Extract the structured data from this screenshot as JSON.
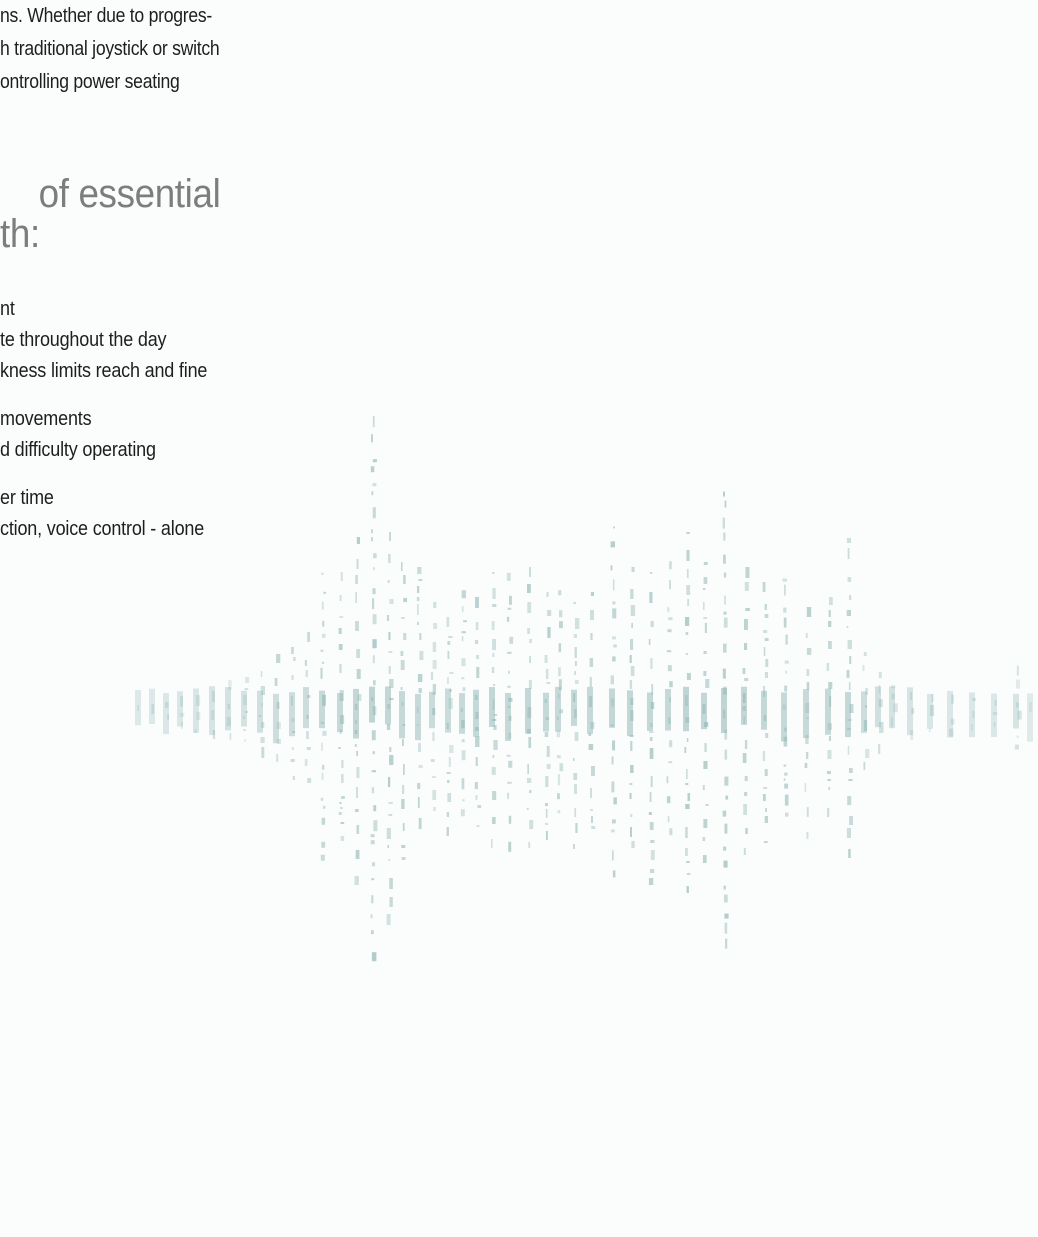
{
  "intro": {
    "line1": "ns. Whether due to progres-",
    "line2": "h traditional joystick or switch",
    "line3": "ontrolling power seating"
  },
  "heading": {
    "line1": "of essential",
    "line2": "th:"
  },
  "bullets": {
    "items": [
      "nt",
      "te throughout the day",
      "kness limits reach and fine",
      "movements",
      "d difficulty operating",
      "er time",
      "ction, voice control - alone"
    ]
  },
  "colors": {
    "text": "#1e1e1e",
    "heading": "#7d7d7d",
    "waveform": "#8fb6b3",
    "background": "#fbfcfc"
  }
}
